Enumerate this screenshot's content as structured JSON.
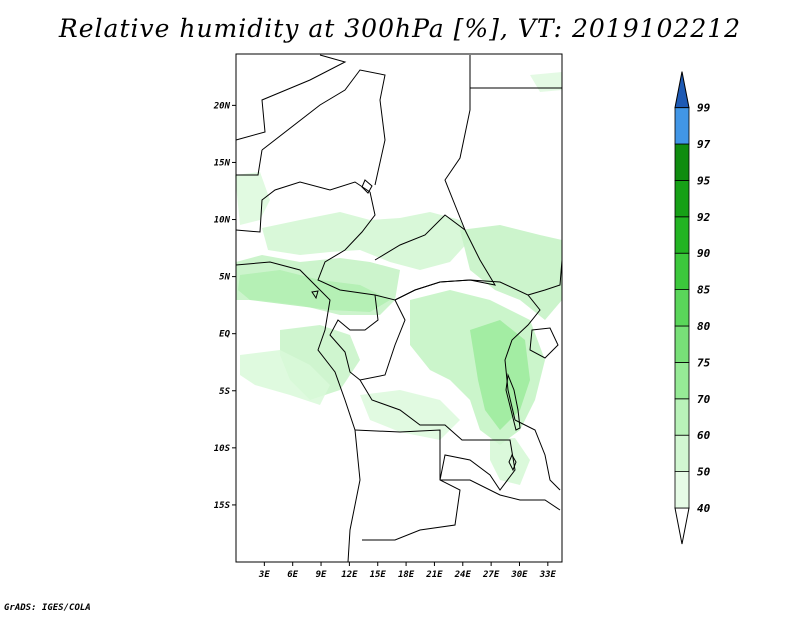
{
  "title": "Relative humidity at 300hPa [%], VT: 2019102212",
  "credit": "GrADS: IGES/COLA",
  "map": {
    "region": "Central Africa",
    "lon_range": [
      0,
      34.5
    ],
    "lat_range": [
      -20,
      24.5
    ],
    "lat_ticks": [
      {
        "value": 20,
        "label": "20N"
      },
      {
        "value": 15,
        "label": "15N"
      },
      {
        "value": 10,
        "label": "10N"
      },
      {
        "value": 5,
        "label": "5N"
      },
      {
        "value": 0,
        "label": "EQ"
      },
      {
        "value": -5,
        "label": "5S"
      },
      {
        "value": -10,
        "label": "10S"
      },
      {
        "value": -15,
        "label": "15S"
      }
    ],
    "lon_ticks": [
      {
        "value": 3,
        "label": "3E"
      },
      {
        "value": 6,
        "label": "6E"
      },
      {
        "value": 9,
        "label": "9E"
      },
      {
        "value": 12,
        "label": "12E"
      },
      {
        "value": 15,
        "label": "15E"
      },
      {
        "value": 18,
        "label": "18E"
      },
      {
        "value": 21,
        "label": "21E"
      },
      {
        "value": 24,
        "label": "24E"
      },
      {
        "value": 27,
        "label": "27E"
      },
      {
        "value": 30,
        "label": "30E"
      },
      {
        "value": 33,
        "label": "33E"
      }
    ]
  },
  "colorbar": {
    "levels": [
      {
        "label": "40",
        "color": "#e6fbe6"
      },
      {
        "label": "50",
        "color": "#d2f7d2"
      },
      {
        "label": "60",
        "color": "#b9f2b9"
      },
      {
        "label": "70",
        "color": "#96ea96"
      },
      {
        "label": "75",
        "color": "#78e078"
      },
      {
        "label": "80",
        "color": "#5ad65a"
      },
      {
        "label": "85",
        "color": "#3cc83c"
      },
      {
        "label": "90",
        "color": "#23b423"
      },
      {
        "label": "92",
        "color": "#16a016"
      },
      {
        "label": "95",
        "color": "#0f8c0f"
      },
      {
        "label": "97",
        "color": "#4196e6"
      },
      {
        "label": "99",
        "color": "#2d78d2"
      }
    ],
    "over_color": "#1e5ab4",
    "under_color": "#ffffff"
  }
}
